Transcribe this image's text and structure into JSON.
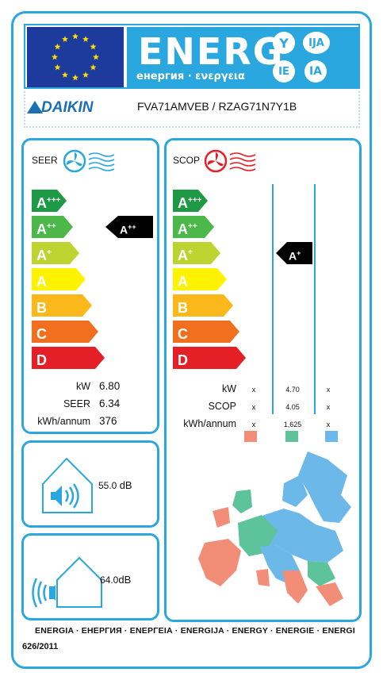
{
  "header": {
    "energy_word": "ENERG",
    "subtitle": "енергия · ενεργεια",
    "lang_codes": [
      "Y",
      "IJA",
      "IE",
      "IA"
    ]
  },
  "brand": {
    "name": "DAIKIN",
    "model": "FVA71AMVEB / RZAG71N7Y1B"
  },
  "seer_panel": {
    "title": "SEER",
    "classes": [
      "A+++",
      "A++",
      "A+",
      "A",
      "B",
      "C",
      "D"
    ],
    "class_letters": [
      "A",
      "A",
      "A",
      "A",
      "B",
      "C",
      "D"
    ],
    "class_sups": [
      "+++",
      "++",
      "+",
      "",
      "",
      "",
      ""
    ],
    "class_colors": [
      "#1e9a47",
      "#4cb849",
      "#bcd430",
      "#fff200",
      "#fbb81b",
      "#f07020",
      "#e41f26"
    ],
    "rating_letter": "A",
    "rating_sup": "++",
    "specs": [
      {
        "label": "kW",
        "value": "6.80"
      },
      {
        "label": "SEER",
        "value": "6.34"
      },
      {
        "label": "kWh/annum",
        "value": "376"
      }
    ]
  },
  "scop_panel": {
    "title": "SCOP",
    "rating_letter": "A",
    "rating_sup": "+",
    "specs": [
      {
        "label": "kW",
        "values": [
          "x",
          "4.70",
          "x"
        ]
      },
      {
        "label": "SCOP",
        "values": [
          "x",
          "4.05",
          "x"
        ]
      },
      {
        "label": "kWh/annum",
        "values": [
          "x",
          "1,625",
          "x"
        ]
      }
    ],
    "zone_colors": [
      "#f28e78",
      "#5cc39a",
      "#6bb8e9"
    ]
  },
  "noise": {
    "indoor_value": "55.0",
    "indoor_unit": "dB",
    "outdoor_value": "64.0",
    "outdoor_unit": "dB"
  },
  "footer": {
    "energy_words": "ENERGIA · ЕНЕРГИЯ · ΕΝΕΡΓΕΙΑ · ENERGIJA · ENERGY · ENERGIE · ENERGI",
    "regulation": "626/2011"
  }
}
